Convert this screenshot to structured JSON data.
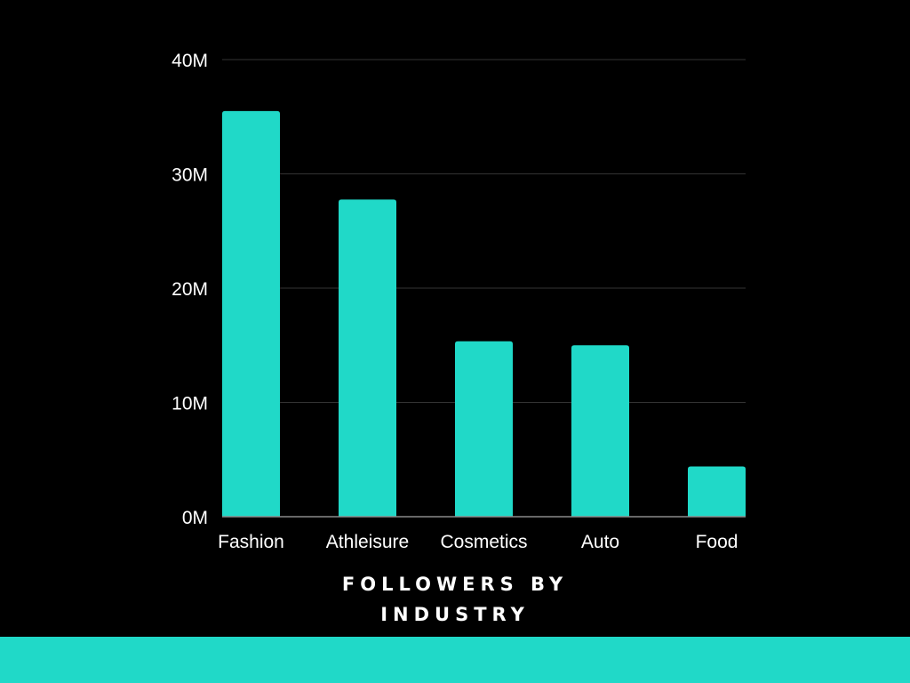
{
  "chart_data": {
    "type": "bar",
    "title": "FOLLOWERS BY INDUSTRY",
    "xlabel": "",
    "ylabel": "",
    "categories": [
      "Fashion",
      "Athleisure",
      "Cosmetics",
      "Auto",
      "Food"
    ],
    "values": [
      35.5,
      27.75,
      15.35,
      15.0,
      4.4
    ],
    "value_unit": "millions of followers",
    "ylim": [
      0,
      40
    ],
    "yticks": [
      0,
      10,
      20,
      30,
      40
    ],
    "ytick_labels": [
      "0M",
      "10M",
      "20M",
      "30M",
      "40M"
    ],
    "grid": true,
    "legend": "none"
  },
  "colors": {
    "background": "#000000",
    "bar": "#20d9c8",
    "footer_band": "#20d9c8",
    "text": "#ffffff"
  }
}
